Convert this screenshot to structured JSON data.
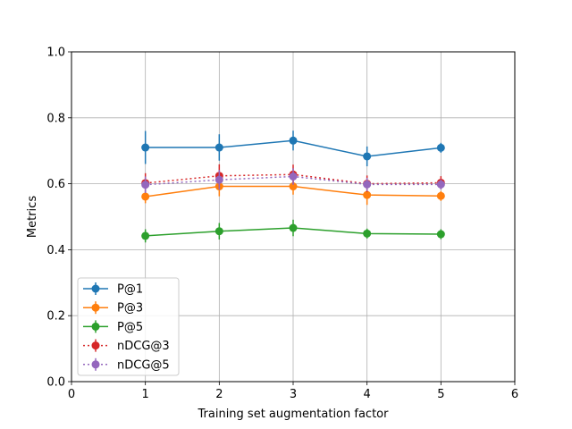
{
  "chart_data": {
    "type": "line",
    "title": "",
    "xlabel": "Training set augmentation factor",
    "ylabel": "Metrics",
    "xlim": [
      0,
      6
    ],
    "ylim": [
      0.0,
      1.0
    ],
    "xticks": [
      "0",
      "1",
      "2",
      "3",
      "4",
      "5",
      "6"
    ],
    "yticks": [
      "0.0",
      "0.2",
      "0.4",
      "0.6",
      "0.8",
      "1.0"
    ],
    "grid": true,
    "legend_position": "lower-left",
    "x": [
      1,
      2,
      3,
      4,
      5
    ],
    "series": [
      {
        "name": "P@1",
        "values": [
          0.71,
          0.71,
          0.731,
          0.683,
          0.709
        ],
        "errors": [
          0.05,
          0.04,
          0.03,
          0.03,
          0.015
        ],
        "color": "#1f77b4",
        "linestyle": "solid"
      },
      {
        "name": "P@3",
        "values": [
          0.561,
          0.592,
          0.592,
          0.566,
          0.563
        ],
        "errors": [
          0.02,
          0.03,
          0.025,
          0.03,
          0.015
        ],
        "color": "#ff7f0e",
        "linestyle": "solid"
      },
      {
        "name": "P@5",
        "values": [
          0.442,
          0.456,
          0.466,
          0.449,
          0.447
        ],
        "errors": [
          0.02,
          0.025,
          0.025,
          0.015,
          0.015
        ],
        "color": "#2ca02c",
        "linestyle": "solid"
      },
      {
        "name": "nDCG@3",
        "values": [
          0.602,
          0.624,
          0.628,
          0.6,
          0.603
        ],
        "errors": [
          0.03,
          0.035,
          0.03,
          0.025,
          0.02
        ],
        "color": "#d62728",
        "linestyle": "dotted"
      },
      {
        "name": "nDCG@5",
        "values": [
          0.597,
          0.612,
          0.622,
          0.598,
          0.598
        ],
        "errors": [
          0.025,
          0.03,
          0.025,
          0.02,
          0.015
        ],
        "color": "#9467bd",
        "linestyle": "dotted"
      }
    ]
  }
}
